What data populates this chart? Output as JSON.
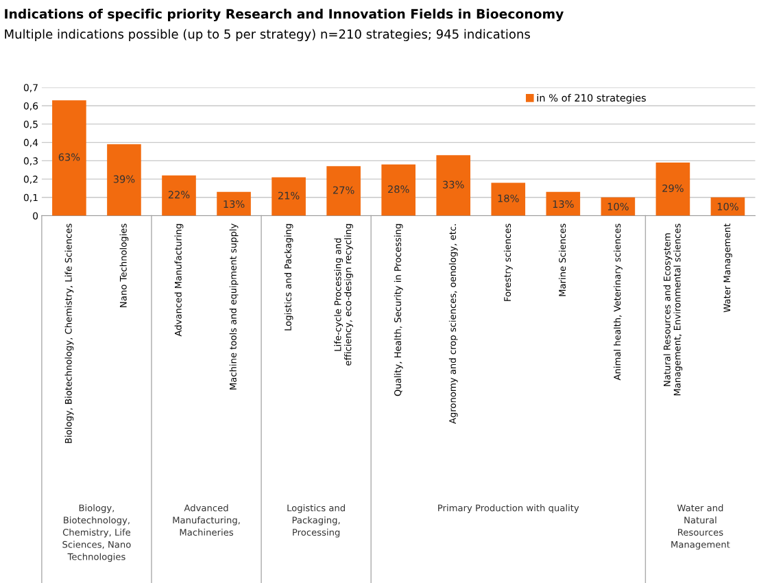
{
  "chart_data": {
    "type": "bar",
    "title": "Indications of specific priority Research and Innovation Fields in Bioeconomy",
    "subtitle": "Multiple indications possible (up to 5 per strategy) n=210 strategies; 945 indications",
    "categories": [
      "Biology, Biotechnology, Chemistry, Life Sciences",
      "Nano Technologies",
      "Advanced Manufacturing",
      "Machine tools and equipment supply",
      "Logistics and Packaging",
      "Life-cycle Processing and efficiency, eco-design recycling",
      "Quality, Health, Security in Processing",
      "Agronomy and crop sciences, oenology, etc.",
      "Forestry sciences",
      "Marine Sciences",
      "Animal health, Veterinary sciences",
      "Natural Resources and Ecosystem Management, Environmental sciences",
      "Water Management"
    ],
    "series": [
      {
        "name": "in % of 210 strategies",
        "color": "#f26b0f",
        "values": [
          0.63,
          0.39,
          0.22,
          0.13,
          0.21,
          0.27,
          0.28,
          0.33,
          0.18,
          0.13,
          0.1,
          0.29,
          0.1
        ],
        "value_labels": [
          "63%",
          "39%",
          "22%",
          "13%",
          "21%",
          "27%",
          "28%",
          "33%",
          "18%",
          "13%",
          "10%",
          "29%",
          "10%"
        ]
      }
    ],
    "ylim": [
      0,
      0.7
    ],
    "yticks": [
      0,
      {
        "value": 0.1,
        "label": "0,1"
      },
      {
        "value": 0.2,
        "label": "0,2"
      },
      {
        "value": 0.3,
        "label": "0,3"
      },
      {
        "value": 0.4,
        "label": "0,4"
      },
      {
        "value": 0.5,
        "label": "0,5"
      },
      {
        "value": 0.6,
        "label": "0,6"
      },
      {
        "value": 0.7,
        "label": "0,7"
      }
    ],
    "grid": "y",
    "legend": "top right",
    "annotations": [
      "Biology, Biotechnology, Chemistry, Life Sciences, Nano Technologies",
      "Advanced Manufacturing, Machineries",
      "Logistics and Packaging, Processing",
      "Primary Production with quality",
      "Water and Natural Resources Management"
    ]
  }
}
